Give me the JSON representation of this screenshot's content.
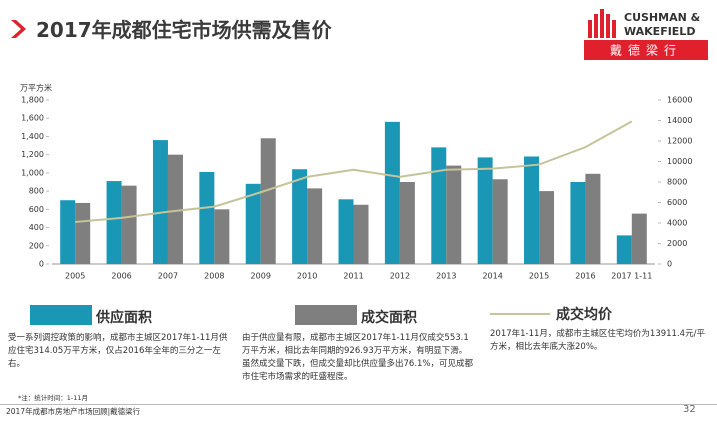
{
  "header": {
    "title": "2017年成都住宅市场供需及售价",
    "logo_en_1": "CUSHMAN &",
    "logo_en_2": "WAKEFIELD",
    "logo_cn": "戴德梁行"
  },
  "chart_data": {
    "type": "bar",
    "ylabel": "万平方米",
    "categories": [
      "2005",
      "2006",
      "2007",
      "2008",
      "2009",
      "2010",
      "2011",
      "2012",
      "2013",
      "2014",
      "2015",
      "2016",
      "2017 1-11"
    ],
    "series": [
      {
        "name": "供应面积",
        "color": "#1a97b4",
        "type": "bar",
        "values": [
          700,
          910,
          1360,
          1010,
          880,
          1040,
          710,
          1560,
          1280,
          1170,
          1180,
          900,
          314
        ]
      },
      {
        "name": "成交面积",
        "color": "#7f7f7f",
        "type": "bar",
        "values": [
          670,
          860,
          1200,
          600,
          1380,
          830,
          650,
          900,
          1080,
          930,
          800,
          990,
          553
        ]
      },
      {
        "name": "成交均价",
        "color": "#c5c39a",
        "type": "line",
        "axis": "y2",
        "values": [
          4100,
          4500,
          5100,
          5600,
          7000,
          8500,
          9200,
          8500,
          9200,
          9300,
          9700,
          11400,
          13911
        ]
      }
    ],
    "ylim": [
      0,
      1800
    ],
    "yticks": [
      0,
      200,
      400,
      600,
      800,
      {
        "value": 1000,
        "label": "1,000"
      },
      {
        "value": 1200,
        "label": "1,200"
      },
      {
        "value": 1400,
        "label": "1,400"
      },
      {
        "value": 1600,
        "label": "1,600"
      },
      {
        "value": 1800,
        "label": "1,800"
      }
    ],
    "y2lim": [
      0,
      16000
    ],
    "y2ticks": [
      0,
      2000,
      4000,
      6000,
      8000,
      10000,
      12000,
      14000,
      16000
    ]
  },
  "descriptions": [
    "受一系列调控政策的影响，成都市主城区2017年1-11月供应住宅314.05万平方米，仅占2016年全年的三分之一左右。",
    "由于供应量有限，成都市主城区2017年1-11月仅成交553.1万平方米，相比去年同期的926.93万平方米，有明显下滑。虽然成交量下跌，但成交量却比供应量多出76.1%，可见成都市住宅市场需求的旺盛程度。",
    "2017年1-11月，成都市主城区住宅均价为13911.4元/平方米，相比去年底大涨20%。"
  ],
  "footer": {
    "note": "*注：统计时间：1-11月",
    "source": "2017年成都市房地产市场回顾|戴德梁行",
    "page": "32"
  }
}
